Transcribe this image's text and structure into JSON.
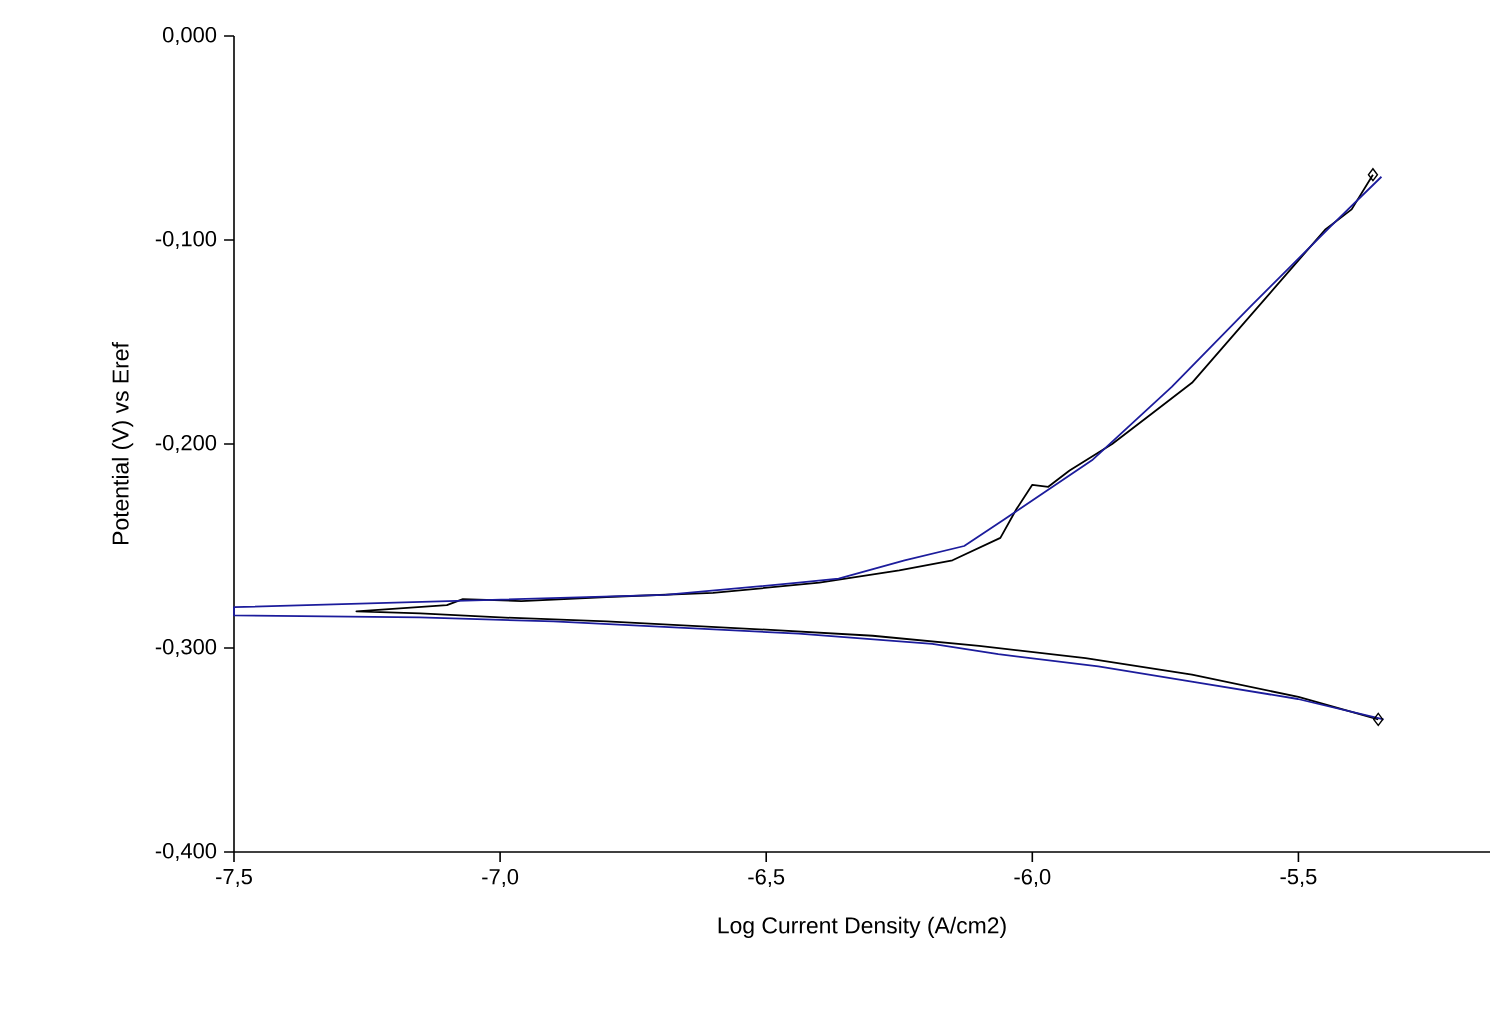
{
  "chart_data": {
    "type": "line",
    "xlabel": "Log Current Density (A/cm2)",
    "ylabel": "Potential (V) vs Eref",
    "xlim": [
      -7.5,
      -5.14
    ],
    "ylim": [
      -0.4,
      0.0
    ],
    "xticks": [
      {
        "value": -7.5,
        "label": "-7,5"
      },
      {
        "value": -7.0,
        "label": "-7,0"
      },
      {
        "value": -6.5,
        "label": "-6,5"
      },
      {
        "value": -6.0,
        "label": "-6,0"
      },
      {
        "value": -5.5,
        "label": "-5,5"
      }
    ],
    "yticks": [
      {
        "value": -0.4,
        "label": "-0,400"
      },
      {
        "value": -0.3,
        "label": "-0,300"
      },
      {
        "value": -0.2,
        "label": "-0,200"
      },
      {
        "value": -0.1,
        "label": "-0,100"
      },
      {
        "value": 0.0,
        "label": "0,000"
      }
    ],
    "grid": false,
    "series": [
      {
        "color": "#000000",
        "x": [
          -5.35,
          -5.5,
          -5.7,
          -5.9,
          -6.1,
          -6.3,
          -6.5,
          -6.8,
          -7.0,
          -7.15,
          -7.27,
          -7.1,
          -7.07,
          -6.96,
          -6.8,
          -6.6,
          -6.4,
          -6.25,
          -6.15,
          -6.06,
          -6.03,
          -6.0,
          -5.97,
          -5.93,
          -5.85,
          -5.78,
          -5.7,
          -5.6,
          -5.5,
          -5.45,
          -5.4,
          -5.36
        ],
        "values": [
          -0.335,
          -0.324,
          -0.313,
          -0.305,
          -0.299,
          -0.294,
          -0.291,
          -0.287,
          -0.285,
          -0.283,
          -0.282,
          -0.279,
          -0.276,
          -0.277,
          -0.275,
          -0.273,
          -0.268,
          -0.262,
          -0.257,
          -0.246,
          -0.232,
          -0.22,
          -0.221,
          -0.213,
          -0.2,
          -0.186,
          -0.17,
          -0.14,
          -0.11,
          -0.095,
          -0.085,
          -0.068
        ]
      },
      {
        "type": "scatter",
        "marker": "diamond",
        "color": "#000000",
        "x": [
          -5.36,
          -5.35
        ],
        "values": [
          -0.068,
          -0.335
        ]
      },
      {
        "color": "#1c1c9c",
        "x": [
          -5.344,
          -5.438,
          -5.588,
          -5.738,
          -5.888,
          -6.053,
          -6.128,
          -6.24,
          -6.364,
          -6.439,
          -6.69,
          -7.5,
          -7.5,
          -7.151,
          -6.9,
          -6.664,
          -6.439,
          -6.188,
          -6.064,
          -5.876,
          -5.689,
          -5.501,
          -5.34
        ],
        "values": [
          -0.069,
          -0.093,
          -0.132,
          -0.172,
          -0.208,
          -0.237,
          -0.25,
          -0.257,
          -0.266,
          -0.268,
          -0.274,
          -0.28,
          -0.284,
          -0.285,
          -0.287,
          -0.29,
          -0.293,
          -0.298,
          -0.303,
          -0.309,
          -0.317,
          -0.325,
          -0.335
        ]
      }
    ]
  }
}
